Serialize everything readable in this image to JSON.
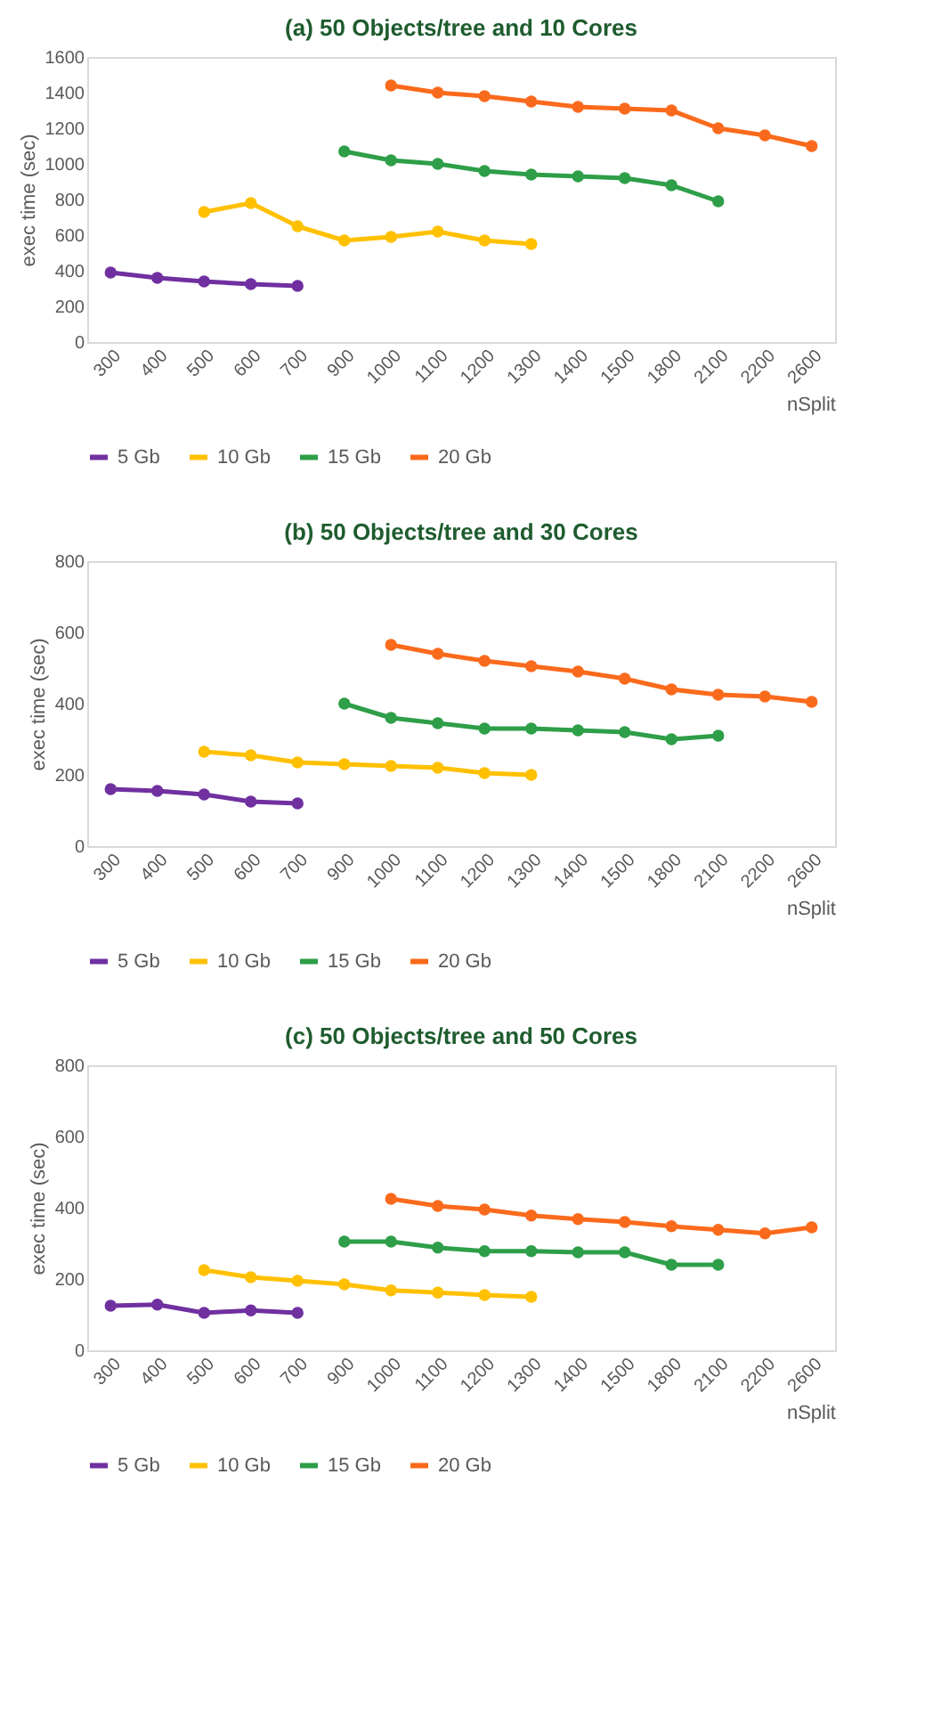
{
  "chart_data": [
    {
      "type": "line",
      "title": "(a) 50 Objects/tree and 10 Cores",
      "xlabel": "nSplit",
      "ylabel": "exec time (sec)",
      "categories": [
        "300",
        "400",
        "500",
        "600",
        "700",
        "900",
        "1000",
        "1100",
        "1200",
        "1300",
        "1400",
        "1500",
        "1800",
        "2100",
        "2200",
        "2600"
      ],
      "ylim": [
        0,
        1600
      ],
      "yticks": [
        0,
        200,
        400,
        600,
        800,
        1000,
        1200,
        1400,
        1600
      ],
      "grid": false,
      "legend": "bottom",
      "marker": "circle",
      "series": [
        {
          "name": "5 Gb",
          "color": "#7030a0",
          "values": [
            390,
            360,
            340,
            325,
            315,
            null,
            null,
            null,
            null,
            null,
            null,
            null,
            null,
            null,
            null,
            null
          ]
        },
        {
          "name": "10 Gb",
          "color": "#ffc000",
          "values": [
            null,
            null,
            730,
            780,
            650,
            570,
            590,
            620,
            570,
            550,
            null,
            null,
            null,
            null,
            null,
            null
          ]
        },
        {
          "name": "15 Gb",
          "color": "#2e9e48",
          "values": [
            null,
            null,
            null,
            null,
            null,
            1070,
            1020,
            1000,
            960,
            940,
            930,
            920,
            880,
            790,
            null,
            null
          ]
        },
        {
          "name": "20 Gb",
          "color": "#fa6a1c",
          "values": [
            null,
            null,
            null,
            null,
            null,
            null,
            1440,
            1400,
            1380,
            1350,
            1320,
            1310,
            1300,
            1200,
            1160,
            1100
          ]
        }
      ]
    },
    {
      "type": "line",
      "title": "(b) 50 Objects/tree and 30 Cores",
      "xlabel": "nSplit",
      "ylabel": "exec time (sec)",
      "categories": [
        "300",
        "400",
        "500",
        "600",
        "700",
        "900",
        "1000",
        "1100",
        "1200",
        "1300",
        "1400",
        "1500",
        "1800",
        "2100",
        "2200",
        "2600"
      ],
      "ylim": [
        0,
        800
      ],
      "yticks": [
        0,
        200,
        400,
        600,
        800
      ],
      "grid": false,
      "legend": "bottom",
      "marker": "circle",
      "series": [
        {
          "name": "5 Gb",
          "color": "#7030a0",
          "values": [
            160,
            155,
            145,
            125,
            120,
            null,
            null,
            null,
            null,
            null,
            null,
            null,
            null,
            null,
            null,
            null
          ]
        },
        {
          "name": "10 Gb",
          "color": "#ffc000",
          "values": [
            null,
            null,
            265,
            255,
            235,
            230,
            225,
            220,
            205,
            200,
            null,
            null,
            null,
            null,
            null,
            null
          ]
        },
        {
          "name": "15 Gb",
          "color": "#2e9e48",
          "values": [
            null,
            null,
            null,
            null,
            null,
            400,
            360,
            345,
            330,
            330,
            325,
            320,
            300,
            310,
            null,
            null
          ]
        },
        {
          "name": "20 Gb",
          "color": "#fa6a1c",
          "values": [
            null,
            null,
            null,
            null,
            null,
            null,
            565,
            540,
            520,
            505,
            490,
            470,
            440,
            425,
            420,
            405
          ]
        }
      ]
    },
    {
      "type": "line",
      "title": "(c) 50 Objects/tree and 50 Cores",
      "xlabel": "nSplit",
      "ylabel": "exec time (sec)",
      "categories": [
        "300",
        "400",
        "500",
        "600",
        "700",
        "900",
        "1000",
        "1100",
        "1200",
        "1300",
        "1400",
        "1500",
        "1800",
        "2100",
        "2200",
        "2600"
      ],
      "ylim": [
        0,
        800
      ],
      "yticks": [
        0,
        200,
        400,
        600,
        800
      ],
      "grid": false,
      "legend": "bottom",
      "marker": "circle",
      "series": [
        {
          "name": "5 Gb",
          "color": "#7030a0",
          "values": [
            125,
            128,
            105,
            112,
            105,
            null,
            null,
            null,
            null,
            null,
            null,
            null,
            null,
            null,
            null,
            null
          ]
        },
        {
          "name": "10 Gb",
          "color": "#ffc000",
          "values": [
            null,
            null,
            225,
            205,
            195,
            185,
            168,
            162,
            155,
            150,
            null,
            null,
            null,
            null,
            null,
            null
          ]
        },
        {
          "name": "15 Gb",
          "color": "#2e9e48",
          "values": [
            null,
            null,
            null,
            null,
            null,
            305,
            305,
            288,
            278,
            278,
            275,
            275,
            240,
            240,
            null,
            null
          ]
        },
        {
          "name": "20 Gb",
          "color": "#fa6a1c",
          "values": [
            null,
            null,
            null,
            null,
            null,
            null,
            425,
            405,
            395,
            378,
            368,
            360,
            348,
            338,
            328,
            345
          ]
        }
      ]
    }
  ]
}
